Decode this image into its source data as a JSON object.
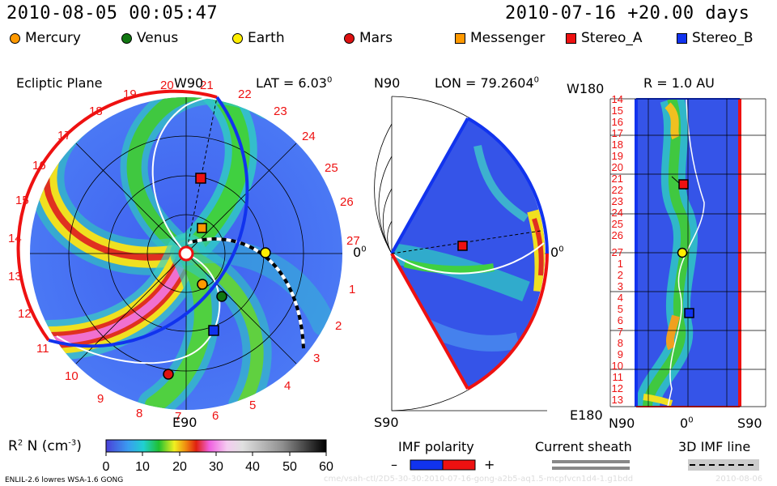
{
  "header": {
    "datetime": "2010-08-05 00:05:47",
    "forecast": "2010-07-16 +20.00 days"
  },
  "legend": [
    {
      "label": "Mercury",
      "shape": "circle",
      "color": "#ff9900"
    },
    {
      "label": "Venus",
      "shape": "circle",
      "color": "#117711"
    },
    {
      "label": "Earth",
      "shape": "circle",
      "color": "#ffee00"
    },
    {
      "label": "Mars",
      "shape": "circle",
      "color": "#dd1111"
    },
    {
      "label": "Messenger",
      "shape": "square",
      "color": "#ff9900"
    },
    {
      "label": "Stereo_A",
      "shape": "square",
      "color": "#ee1111"
    },
    {
      "label": "Stereo_B",
      "shape": "square",
      "color": "#1133ee"
    }
  ],
  "ecliptic": {
    "title": "Ecliptic Plane",
    "top_label": "W90",
    "bottom_label": "E90",
    "right_label": "0",
    "right_sup": "0",
    "lat_label": "LAT = 6.03",
    "lat_sup": "0",
    "rotations": [
      "1",
      "2",
      "3",
      "4",
      "5",
      "6",
      "7",
      "8",
      "9",
      "10",
      "11",
      "12",
      "13",
      "14",
      "15",
      "16",
      "17",
      "18",
      "19",
      "20",
      "21",
      "22",
      "23",
      "24",
      "25",
      "26",
      "27"
    ]
  },
  "meridional": {
    "top_label": "N90",
    "bottom_label": "S90",
    "right_label": "0",
    "right_sup": "0",
    "lon_label": "LON = 79.2604",
    "lon_sup": "0"
  },
  "strip": {
    "top_label": "W180",
    "bottom_label": "E180",
    "r_label": "R = 1.0 AU",
    "x_left": "N90",
    "x_mid": "0",
    "x_mid_sup": "0",
    "x_right": "S90",
    "rotations": [
      "14",
      "15",
      "16",
      "17",
      "18",
      "19",
      "20",
      "21",
      "22",
      "23",
      "24",
      "25",
      "26",
      "27",
      "1",
      "2",
      "3",
      "4",
      "5",
      "6",
      "7",
      "8",
      "9",
      "10",
      "11",
      "12",
      "13"
    ]
  },
  "colorbar": {
    "label": "R",
    "label_sup": "2",
    "label_rest": " N (cm",
    "label_exp": "-3",
    "label_close": ")",
    "ticks": [
      "0",
      "10",
      "20",
      "30",
      "40",
      "50",
      "60"
    ],
    "range": [
      0,
      60
    ]
  },
  "keys": {
    "imf_title": "IMF polarity",
    "imf_minus": "–",
    "imf_plus": "+",
    "sheath_title": "Current sheath",
    "imf3d_title": "3D IMF line"
  },
  "footer": {
    "model": "ENLIL-2.6 lowres WSA-1.6 GONG",
    "run_id": "cme/vsah-ctl/2D5-30-30:2010-07-16-gong-a2b5-aq1.5-mcpfvcn1d4-1.g1bdd",
    "run_date": "2010-08-06"
  }
}
